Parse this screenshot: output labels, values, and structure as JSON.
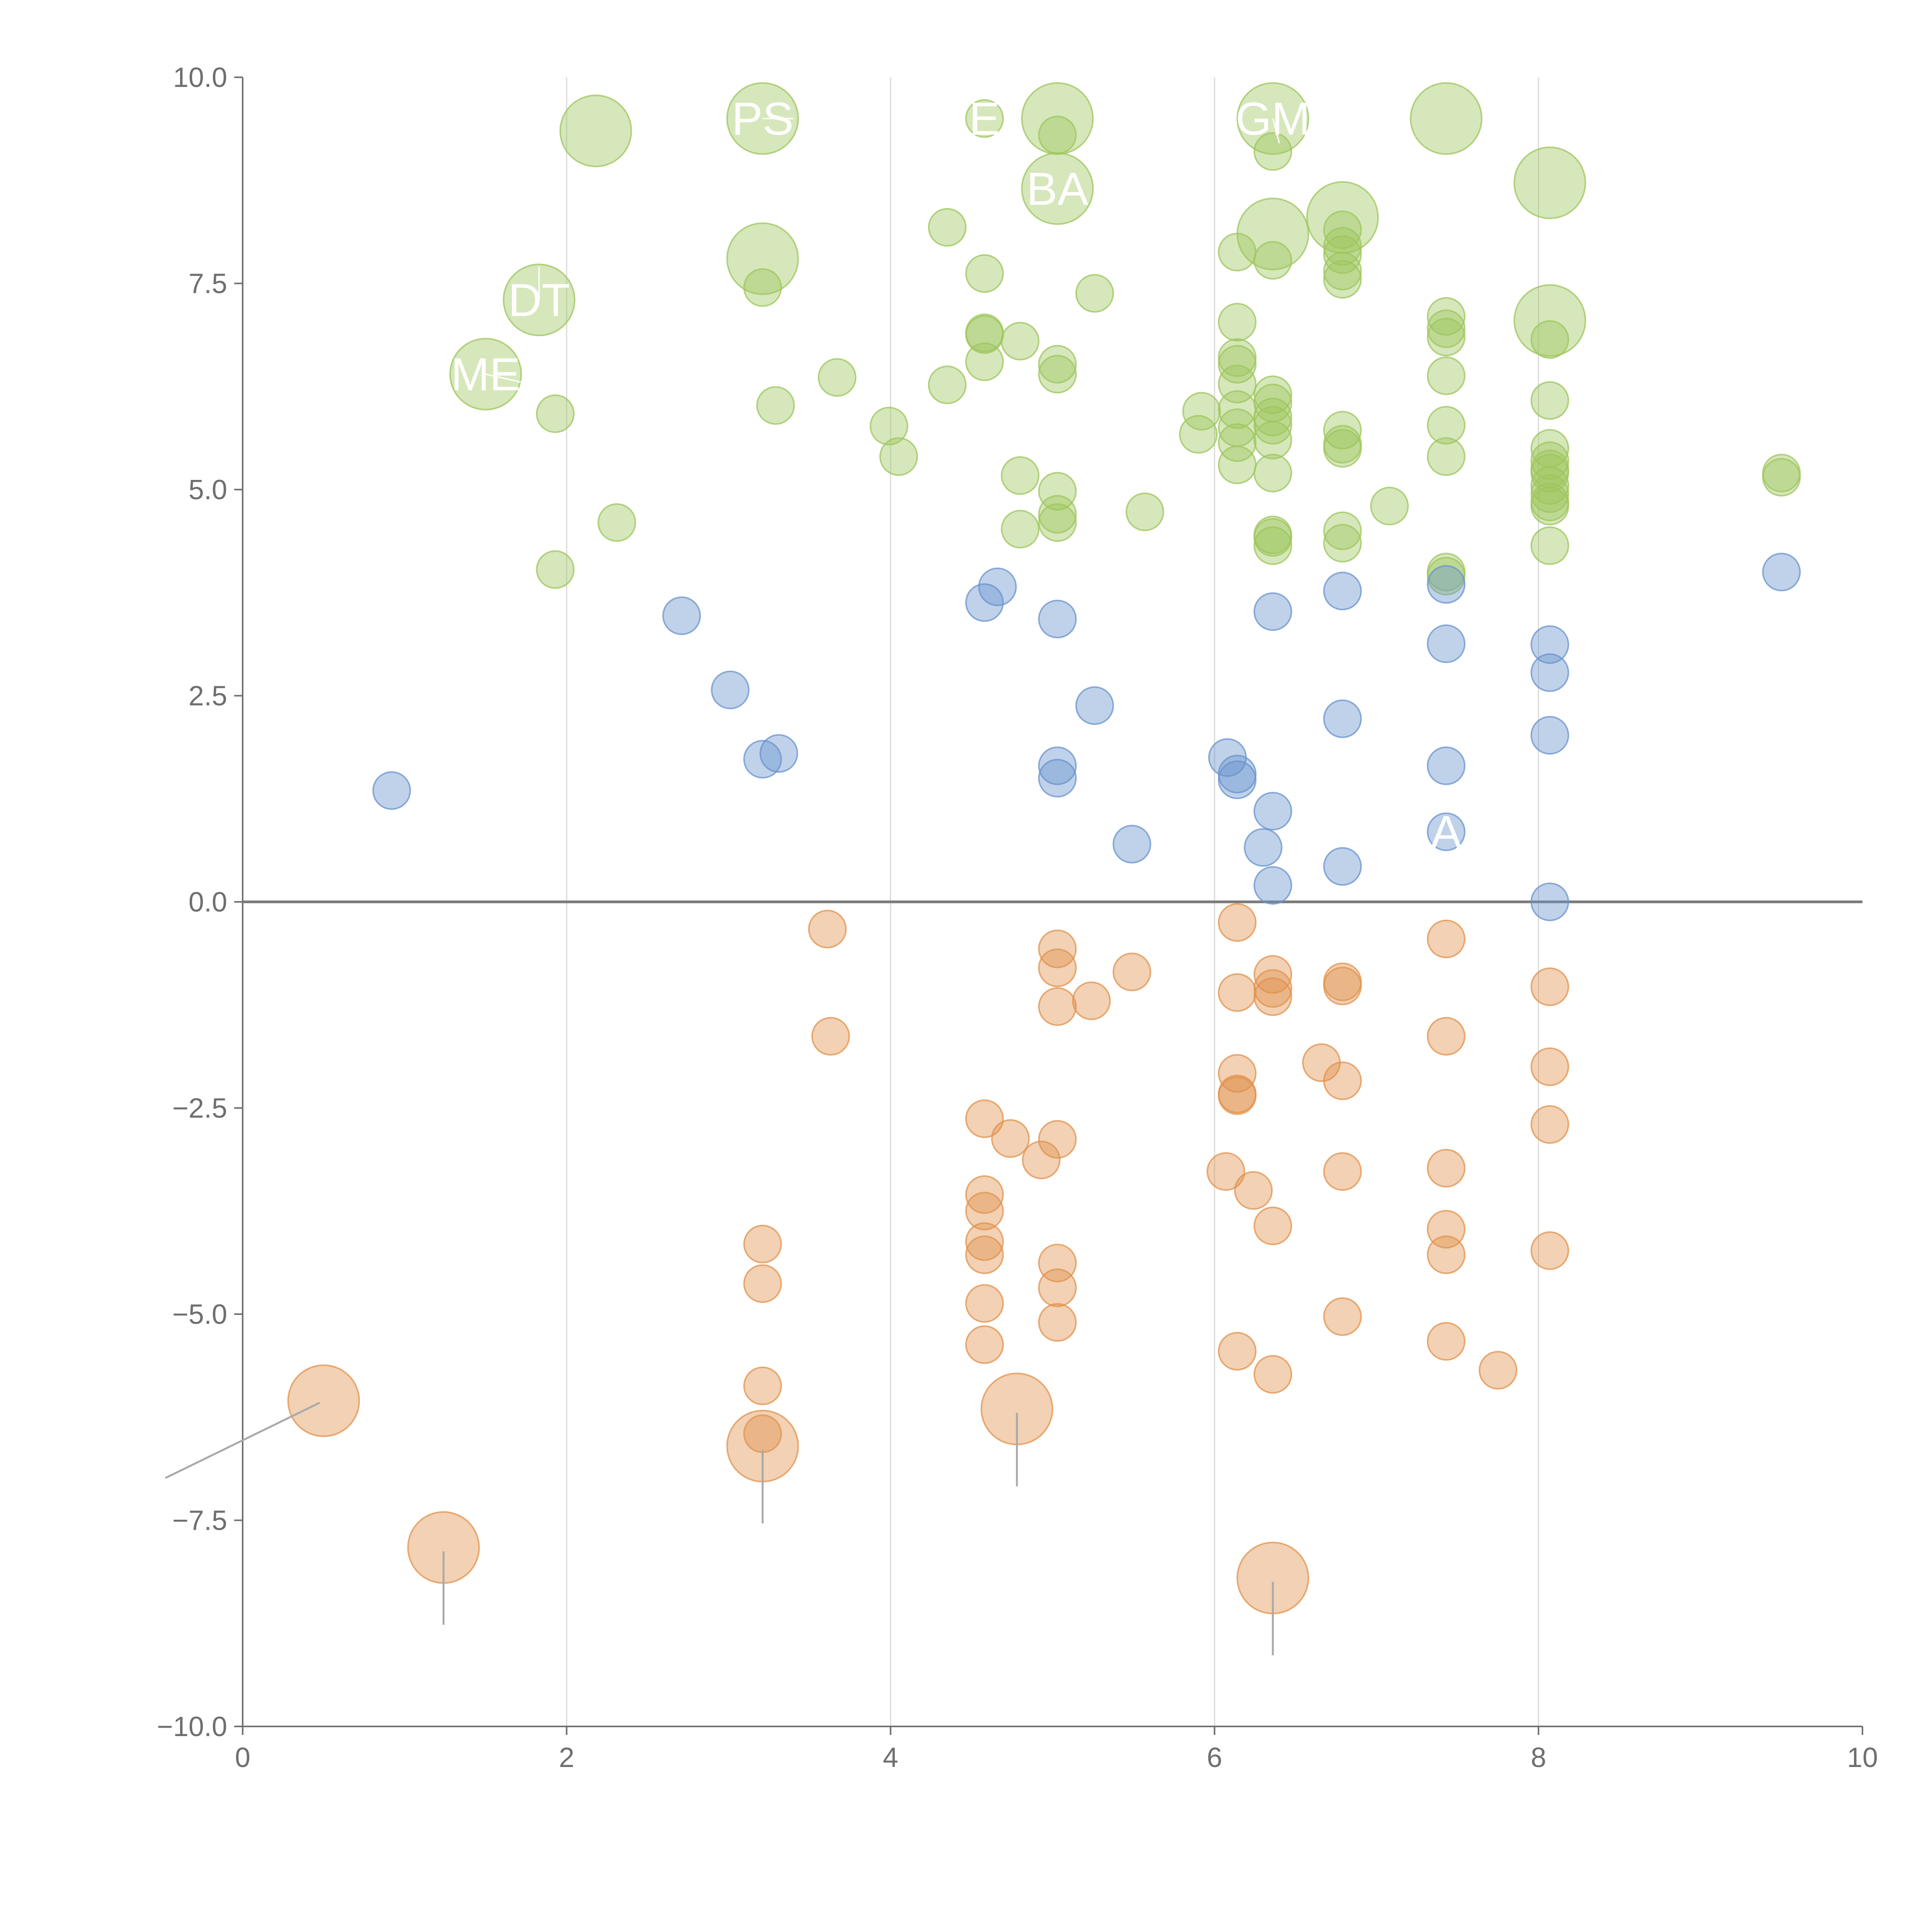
{
  "chart_data": {
    "type": "scatter",
    "title": "",
    "xlabel": "",
    "ylabel": "",
    "xlim": [
      0,
      10
    ],
    "ylim": [
      -10,
      10
    ],
    "grid": "vertical",
    "x_ticks": [
      "0",
      "2",
      "4",
      "6",
      "8",
      "10"
    ],
    "y_ticks": [
      "10.0",
      "7.5",
      "5.0",
      "2.5",
      "0.0",
      "−2.5",
      "−5.0",
      "−7.5",
      "−10.0"
    ],
    "colors": {
      "positive_high": "#9dc65c",
      "positive_low": "#6a93cc",
      "negative": "#e1924c",
      "axis": "#6f6f6f",
      "zero_line": "#7a7a7a",
      "grid": "#d9d9d9"
    },
    "series": [
      {
        "name": "positive_high",
        "points": [
          [
            1.83,
            7.3,
            "large"
          ],
          [
            1.5,
            6.4,
            "large"
          ],
          [
            2.18,
            9.35,
            "large"
          ],
          [
            3.21,
            9.5,
            "large"
          ],
          [
            3.21,
            7.8,
            "large"
          ],
          [
            5.03,
            9.5,
            "large"
          ],
          [
            5.03,
            8.65,
            "large"
          ],
          [
            6.36,
            9.5,
            "large"
          ],
          [
            6.36,
            8.1,
            "large"
          ],
          [
            6.79,
            8.3,
            "large"
          ],
          [
            7.43,
            9.5,
            "large"
          ],
          [
            8.07,
            8.72,
            "large"
          ],
          [
            8.07,
            7.05,
            "large"
          ],
          [
            1.93,
            5.92,
            "small"
          ],
          [
            1.93,
            4.03,
            "small"
          ],
          [
            2.31,
            4.6,
            "small"
          ],
          [
            3.21,
            7.45,
            "small"
          ],
          [
            3.29,
            6.02,
            "small"
          ],
          [
            3.67,
            6.36,
            "small"
          ],
          [
            3.99,
            5.77,
            "small"
          ],
          [
            4.05,
            5.4,
            "small"
          ],
          [
            4.35,
            8.18,
            "small"
          ],
          [
            4.35,
            6.27,
            "small"
          ],
          [
            4.58,
            9.5,
            "small"
          ],
          [
            4.58,
            7.62,
            "small"
          ],
          [
            4.58,
            6.9,
            "small"
          ],
          [
            4.58,
            6.88,
            "small"
          ],
          [
            4.58,
            6.55,
            "small"
          ],
          [
            4.8,
            6.8,
            "small"
          ],
          [
            4.8,
            5.17,
            "small"
          ],
          [
            4.8,
            4.52,
            "small"
          ],
          [
            5.03,
            9.3,
            "small"
          ],
          [
            5.03,
            6.52,
            "small"
          ],
          [
            5.03,
            6.4,
            "small"
          ],
          [
            5.03,
            4.98,
            "small"
          ],
          [
            5.03,
            4.7,
            "small"
          ],
          [
            5.03,
            4.6,
            "small"
          ],
          [
            5.26,
            7.38,
            "small"
          ],
          [
            5.57,
            4.73,
            "small"
          ],
          [
            5.9,
            5.67,
            "small"
          ],
          [
            5.92,
            5.95,
            "small"
          ],
          [
            6.14,
            7.88,
            "small"
          ],
          [
            6.14,
            7.03,
            "small"
          ],
          [
            6.14,
            6.6,
            "small"
          ],
          [
            6.14,
            6.52,
            "small"
          ],
          [
            6.14,
            6.28,
            "small"
          ],
          [
            6.14,
            5.97,
            "small"
          ],
          [
            6.14,
            5.75,
            "small"
          ],
          [
            6.14,
            5.57,
            "small"
          ],
          [
            6.14,
            5.3,
            "small"
          ],
          [
            6.36,
            9.1,
            "small"
          ],
          [
            6.36,
            7.78,
            "small"
          ],
          [
            6.36,
            6.15,
            "small"
          ],
          [
            6.36,
            6.05,
            "small"
          ],
          [
            6.36,
            5.88,
            "small"
          ],
          [
            6.36,
            5.78,
            "small"
          ],
          [
            6.36,
            5.6,
            "small"
          ],
          [
            6.36,
            5.2,
            "small"
          ],
          [
            6.36,
            4.45,
            "small"
          ],
          [
            6.36,
            4.42,
            "small"
          ],
          [
            6.36,
            4.32,
            "small"
          ],
          [
            6.79,
            8.15,
            "small"
          ],
          [
            6.79,
            7.95,
            "small"
          ],
          [
            6.79,
            7.85,
            "small"
          ],
          [
            6.79,
            7.65,
            "small"
          ],
          [
            6.79,
            7.55,
            "small"
          ],
          [
            6.79,
            5.72,
            "small"
          ],
          [
            6.79,
            5.55,
            "small"
          ],
          [
            6.79,
            5.5,
            "small"
          ],
          [
            6.79,
            4.5,
            "small"
          ],
          [
            6.79,
            4.35,
            "small"
          ],
          [
            7.08,
            4.8,
            "small"
          ],
          [
            7.43,
            7.1,
            "small"
          ],
          [
            7.43,
            6.95,
            "small"
          ],
          [
            7.43,
            6.85,
            "small"
          ],
          [
            7.43,
            6.38,
            "small"
          ],
          [
            7.43,
            5.78,
            "small"
          ],
          [
            7.43,
            5.4,
            "small"
          ],
          [
            7.43,
            4.0,
            "small"
          ],
          [
            7.43,
            3.95,
            "small"
          ],
          [
            8.07,
            6.82,
            "small"
          ],
          [
            8.07,
            6.08,
            "small"
          ],
          [
            8.07,
            5.5,
            "small"
          ],
          [
            8.07,
            5.35,
            "small"
          ],
          [
            8.07,
            5.25,
            "small"
          ],
          [
            8.07,
            5.2,
            "small"
          ],
          [
            8.07,
            5.05,
            "small"
          ],
          [
            8.07,
            4.95,
            "small"
          ],
          [
            8.07,
            4.85,
            "small"
          ],
          [
            8.07,
            4.8,
            "small"
          ],
          [
            8.07,
            4.32,
            "small"
          ],
          [
            9.5,
            5.2,
            "small"
          ],
          [
            9.5,
            5.15,
            "small"
          ]
        ]
      },
      {
        "name": "positive_low",
        "points": [
          [
            0.92,
            1.35,
            "small"
          ],
          [
            2.71,
            3.47,
            "small"
          ],
          [
            3.01,
            2.57,
            "small"
          ],
          [
            3.21,
            1.73,
            "small"
          ],
          [
            3.31,
            1.8,
            "small"
          ],
          [
            4.58,
            3.63,
            "small"
          ],
          [
            4.66,
            3.82,
            "small"
          ],
          [
            5.03,
            3.43,
            "small"
          ],
          [
            5.03,
            1.65,
            "small"
          ],
          [
            5.03,
            1.5,
            "small"
          ],
          [
            5.26,
            2.38,
            "small"
          ],
          [
            5.49,
            0.7,
            "small"
          ],
          [
            6.08,
            1.75,
            "small"
          ],
          [
            6.14,
            1.55,
            "small"
          ],
          [
            6.14,
            1.48,
            "small"
          ],
          [
            6.3,
            0.66,
            "small"
          ],
          [
            6.36,
            3.52,
            "small"
          ],
          [
            6.36,
            1.1,
            "small"
          ],
          [
            6.36,
            0.2,
            "small"
          ],
          [
            6.79,
            3.77,
            "small"
          ],
          [
            6.79,
            2.22,
            "small"
          ],
          [
            6.79,
            0.43,
            "small"
          ],
          [
            7.43,
            3.85,
            "small"
          ],
          [
            7.43,
            3.13,
            "small"
          ],
          [
            7.43,
            1.65,
            "small"
          ],
          [
            7.43,
            0.85,
            "small"
          ],
          [
            8.07,
            3.12,
            "small"
          ],
          [
            8.07,
            2.78,
            "small"
          ],
          [
            8.07,
            2.02,
            "small"
          ],
          [
            8.07,
            0.0,
            "small"
          ],
          [
            9.5,
            4.0,
            "small"
          ]
        ]
      },
      {
        "name": "negative",
        "points": [
          [
            0.5,
            -6.05,
            "large"
          ],
          [
            1.24,
            -7.83,
            "large"
          ],
          [
            3.21,
            -6.6,
            "large"
          ],
          [
            4.78,
            -6.15,
            "large"
          ],
          [
            6.36,
            -8.2,
            "large"
          ],
          [
            3.21,
            -4.15,
            "small"
          ],
          [
            3.21,
            -4.63,
            "small"
          ],
          [
            3.21,
            -5.87,
            "small"
          ],
          [
            3.21,
            -6.45,
            "small"
          ],
          [
            3.61,
            -0.33,
            "small"
          ],
          [
            3.63,
            -1.63,
            "small"
          ],
          [
            4.58,
            -2.63,
            "small"
          ],
          [
            4.58,
            -3.55,
            "small"
          ],
          [
            4.58,
            -3.75,
            "small"
          ],
          [
            4.58,
            -4.12,
            "small"
          ],
          [
            4.58,
            -4.28,
            "small"
          ],
          [
            4.58,
            -4.87,
            "small"
          ],
          [
            4.58,
            -5.37,
            "small"
          ],
          [
            4.74,
            -2.87,
            "small"
          ],
          [
            4.93,
            -3.13,
            "small"
          ],
          [
            5.03,
            -0.57,
            "small"
          ],
          [
            5.03,
            -0.8,
            "small"
          ],
          [
            5.03,
            -1.27,
            "small"
          ],
          [
            5.03,
            -2.88,
            "small"
          ],
          [
            5.03,
            -4.38,
            "small"
          ],
          [
            5.03,
            -4.68,
            "small"
          ],
          [
            5.03,
            -5.1,
            "small"
          ],
          [
            5.24,
            -1.2,
            "small"
          ],
          [
            5.49,
            -0.85,
            "small"
          ],
          [
            6.07,
            -3.27,
            "small"
          ],
          [
            6.14,
            -0.25,
            "small"
          ],
          [
            6.14,
            -1.1,
            "small"
          ],
          [
            6.14,
            -2.08,
            "small"
          ],
          [
            6.14,
            -2.33,
            "small"
          ],
          [
            6.14,
            -2.35,
            "small"
          ],
          [
            6.14,
            -5.45,
            "small"
          ],
          [
            6.24,
            -3.5,
            "small"
          ],
          [
            6.36,
            -0.88,
            "small"
          ],
          [
            6.36,
            -1.05,
            "small"
          ],
          [
            6.36,
            -1.15,
            "small"
          ],
          [
            6.36,
            -3.93,
            "small"
          ],
          [
            6.36,
            -5.73,
            "small"
          ],
          [
            6.66,
            -1.95,
            "small"
          ],
          [
            6.79,
            -0.97,
            "small"
          ],
          [
            6.79,
            -1.02,
            "small"
          ],
          [
            6.79,
            -2.17,
            "small"
          ],
          [
            6.79,
            -3.27,
            "small"
          ],
          [
            6.79,
            -5.03,
            "small"
          ],
          [
            7.43,
            -0.45,
            "small"
          ],
          [
            7.43,
            -1.63,
            "small"
          ],
          [
            7.43,
            -3.23,
            "small"
          ],
          [
            7.43,
            -3.97,
            "small"
          ],
          [
            7.43,
            -4.28,
            "small"
          ],
          [
            7.43,
            -5.33,
            "small"
          ],
          [
            7.75,
            -5.68,
            "small"
          ],
          [
            8.07,
            -1.03,
            "small"
          ],
          [
            8.07,
            -2.0,
            "small"
          ],
          [
            8.07,
            -2.7,
            "small"
          ],
          [
            8.07,
            -4.23,
            "small"
          ]
        ]
      }
    ],
    "annotations": [
      {
        "text": "DT",
        "x": 1.83,
        "y": 7.3,
        "lx": 1.83,
        "ly": 7.7
      },
      {
        "text": "ME",
        "x": 1.5,
        "y": 6.4,
        "lx": 1.95,
        "ly": 6.2
      },
      {
        "text": "PS",
        "x": 3.21,
        "y": 9.5,
        "lx": 3.4,
        "ly": 9.5
      },
      {
        "text": "E",
        "x": 4.58,
        "y": 9.5,
        "lx": 4.58,
        "ly": 9.5
      },
      {
        "text": "BA",
        "x": 5.03,
        "y": 8.65,
        "lx": 5.03,
        "ly": 8.65
      },
      {
        "text": "GM",
        "x": 6.36,
        "y": 9.5,
        "lx": 6.4,
        "ly": 9.2
      },
      {
        "text": "A",
        "x": 7.43,
        "y": 0.85,
        "lx": 7.43,
        "ly": 0.85
      }
    ]
  }
}
